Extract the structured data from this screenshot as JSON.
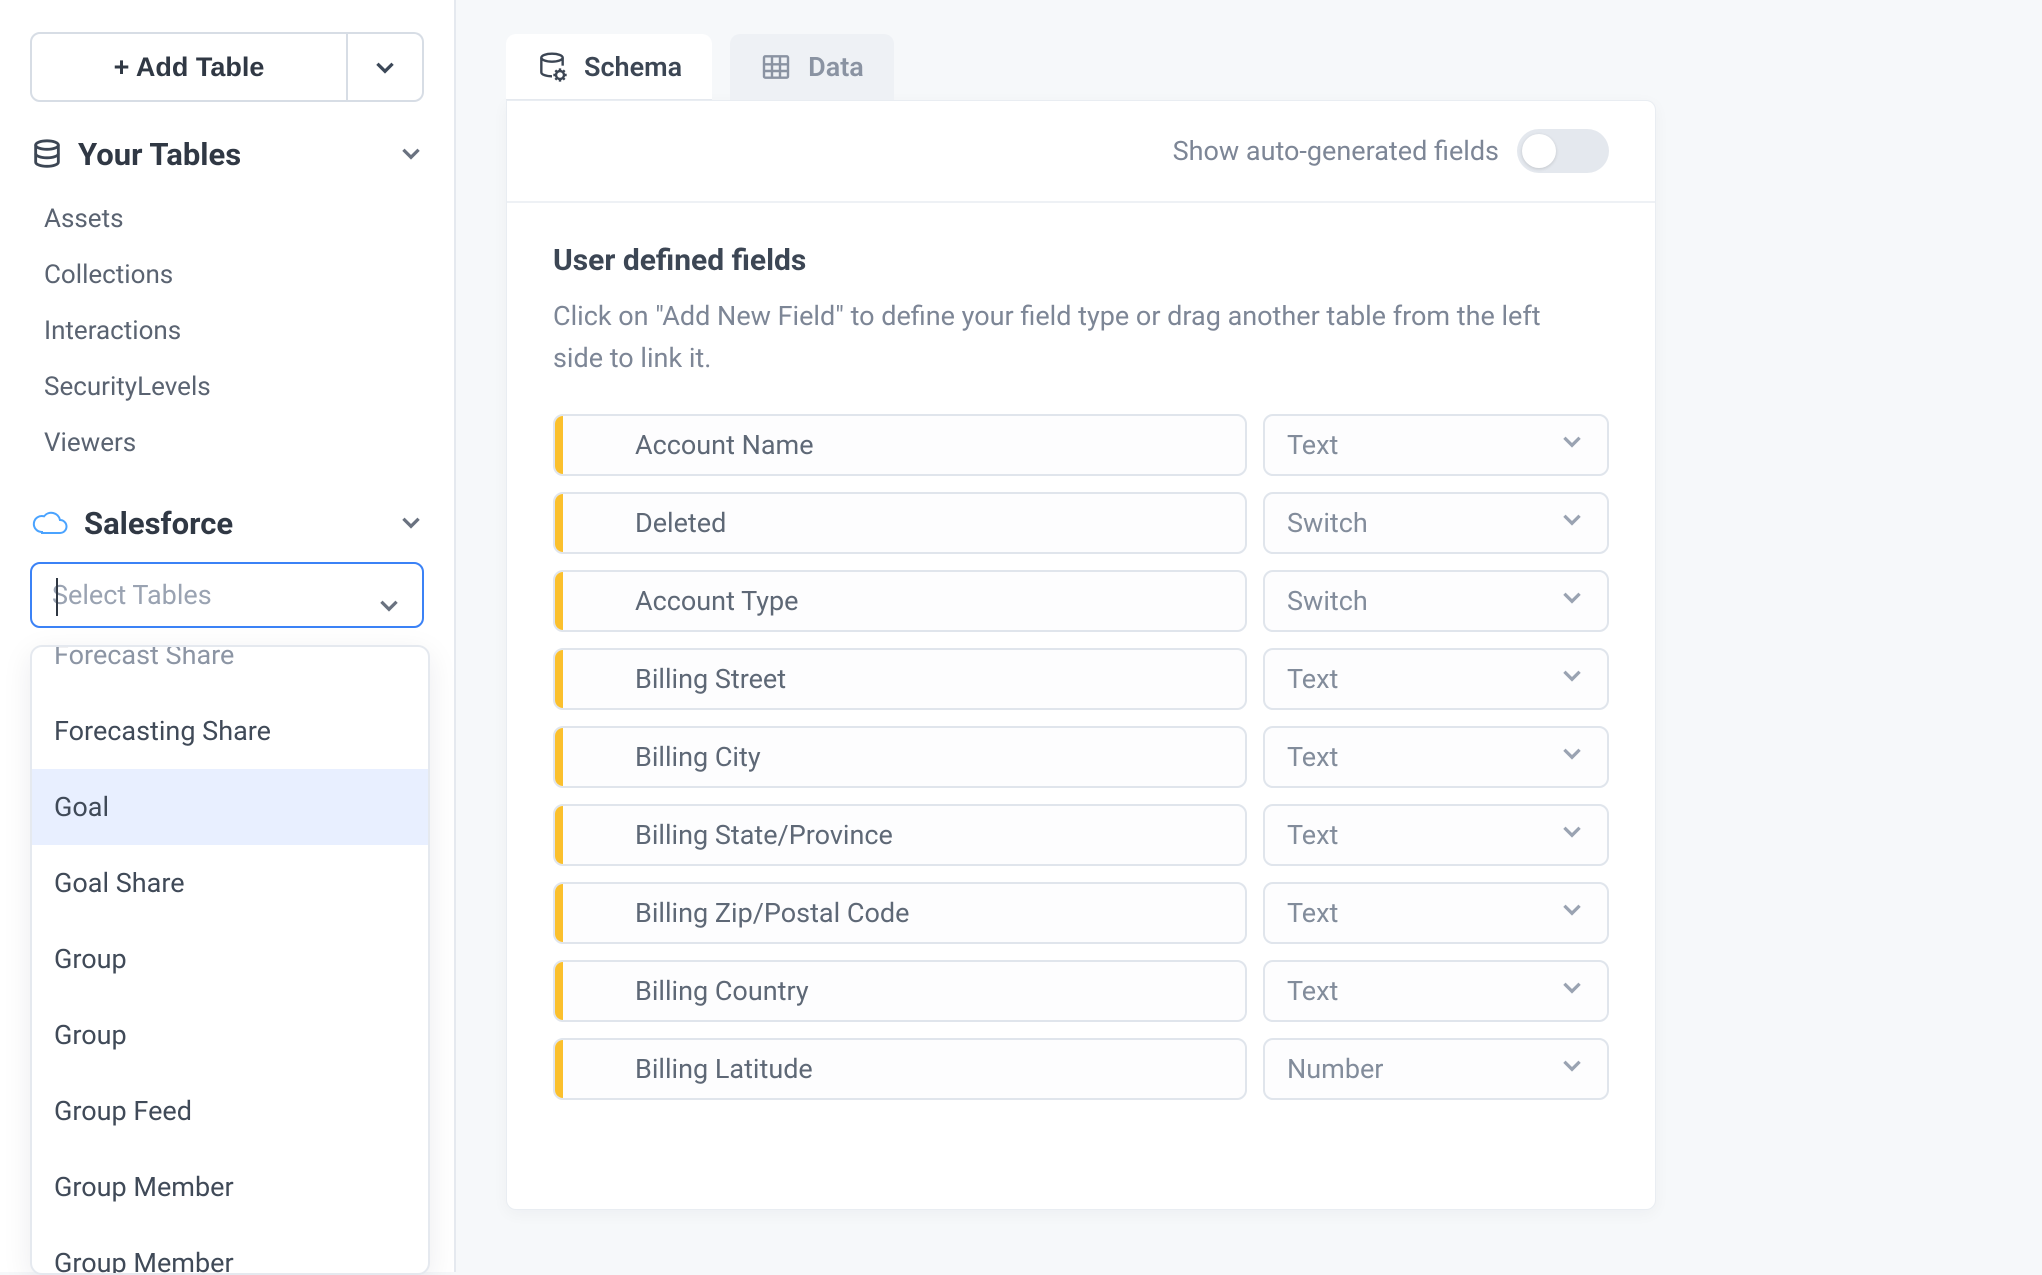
{
  "sidebar": {
    "add_table_label": "+ Add Table",
    "your_tables_label": "Your Tables",
    "tables": [
      {
        "label": "Assets"
      },
      {
        "label": "Collections"
      },
      {
        "label": "Interactions"
      },
      {
        "label": "SecurityLevels"
      },
      {
        "label": "Viewers"
      }
    ],
    "salesforce_label": "Salesforce",
    "select_tables_placeholder": "Select Tables",
    "dropdown": [
      {
        "label": "Forecast Share",
        "partial_top": true
      },
      {
        "label": "Forecasting Share"
      },
      {
        "label": "Goal",
        "selected": true
      },
      {
        "label": "Goal Share"
      },
      {
        "label": "Group"
      },
      {
        "label": "Group"
      },
      {
        "label": "Group Feed"
      },
      {
        "label": "Group Member"
      },
      {
        "label": "Group Member",
        "partial_bottom": true
      }
    ]
  },
  "tabs": {
    "schema_label": "Schema",
    "data_label": "Data"
  },
  "panel": {
    "autogen_label": "Show auto-generated fields",
    "udf_title": "User defined fields",
    "udf_desc": "Click on \"Add New Field\" to define your field type or drag another table from the left side to link it.",
    "fields": [
      {
        "name": "Account Name",
        "type": "Text"
      },
      {
        "name": "Deleted",
        "type": "Switch"
      },
      {
        "name": "Account Type",
        "type": "Switch"
      },
      {
        "name": "Billing Street",
        "type": "Text"
      },
      {
        "name": "Billing City",
        "type": "Text"
      },
      {
        "name": "Billing State/Province",
        "type": "Text"
      },
      {
        "name": "Billing Zip/Postal Code",
        "type": "Text"
      },
      {
        "name": "Billing Country",
        "type": "Text"
      },
      {
        "name": "Billing Latitude",
        "type": "Number"
      }
    ]
  },
  "colors": {
    "accent_yellow": "#fbc02d",
    "focus_blue": "#3b82f6",
    "selection_blue": "#e8efff",
    "border_grey": "#e0e5ec",
    "text_muted": "#7d8696"
  }
}
